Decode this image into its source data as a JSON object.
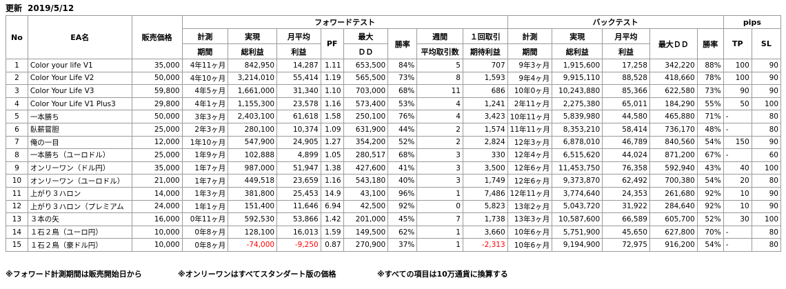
{
  "updated_label": "更新",
  "updated_date": "2019/5/12",
  "groups": {
    "forward": "フォワードテスト",
    "back": "バックテスト",
    "pips": "pips"
  },
  "headers": {
    "no": "No",
    "name": "EA名",
    "price": "販売価格",
    "fw_period_1": "計測",
    "fw_period_2": "期間",
    "fw_total_1": "実現",
    "fw_total_2": "総利益",
    "fw_month_1": "月平均",
    "fw_month_2": "利益",
    "fw_pf": "PF",
    "fw_dd_1": "最大",
    "fw_dd_2": "ＤＤ",
    "fw_win": "勝率",
    "fw_weekly_1": "週間",
    "fw_weekly_2": "平均取引数",
    "fw_exp_1": "１回取引",
    "fw_exp_2": "期待利益",
    "bt_period_1": "計測",
    "bt_period_2": "期間",
    "bt_total_1": "実現",
    "bt_total_2": "総利益",
    "bt_month_1": "月平均",
    "bt_month_2": "利益",
    "bt_dd": "最大ＤＤ",
    "bt_win": "勝率",
    "tp": "TP",
    "sl": "SL"
  },
  "rows": [
    {
      "no": "1",
      "name": "Color your life V1",
      "price": "35,000",
      "fw_period": "4年11ヶ月",
      "fw_total": "842,950",
      "fw_month": "14,287",
      "pf": "1.11",
      "fw_dd": "653,500",
      "fw_win": "84%",
      "weekly": "5",
      "expected": "707",
      "bt_period": "9年3ヶ月",
      "bt_total": "1,915,600",
      "bt_month": "17,258",
      "bt_dd": "342,220",
      "bt_win": "88%",
      "tp": "100",
      "sl": "90"
    },
    {
      "no": "2",
      "name": "Color Your Life V2",
      "price": "50,000",
      "fw_period": "4年10ヶ月",
      "fw_total": "3,214,010",
      "fw_month": "55,414",
      "pf": "1.19",
      "fw_dd": "565,500",
      "fw_win": "73%",
      "weekly": "8",
      "expected": "1,593",
      "bt_period": "9年4ヶ月",
      "bt_total": "9,915,110",
      "bt_month": "88,528",
      "bt_dd": "418,660",
      "bt_win": "78%",
      "tp": "100",
      "sl": "90"
    },
    {
      "no": "3",
      "name": "Color Your Life V3",
      "price": "59,800",
      "fw_period": "4年5ヶ月",
      "fw_total": "1,661,000",
      "fw_month": "31,340",
      "pf": "1.10",
      "fw_dd": "703,000",
      "fw_win": "68%",
      "weekly": "11",
      "expected": "686",
      "bt_period": "10年0ヶ月",
      "bt_total": "10,243,880",
      "bt_month": "85,366",
      "bt_dd": "622,580",
      "bt_win": "73%",
      "tp": "90",
      "sl": "90"
    },
    {
      "no": "4",
      "name": "Color Your Life V1 Plus3",
      "price": "29,800",
      "fw_period": "4年1ヶ月",
      "fw_total": "1,155,300",
      "fw_month": "23,578",
      "pf": "1.16",
      "fw_dd": "573,400",
      "fw_win": "53%",
      "weekly": "4",
      "expected": "1,241",
      "bt_period": "2年11ヶ月",
      "bt_total": "2,275,380",
      "bt_month": "65,011",
      "bt_dd": "184,290",
      "bt_win": "55%",
      "tp": "50",
      "sl": "100"
    },
    {
      "no": "5",
      "name": "一本勝ち",
      "price": "50,000",
      "fw_period": "3年3ヶ月",
      "fw_total": "2,403,100",
      "fw_month": "61,618",
      "pf": "1.58",
      "fw_dd": "250,100",
      "fw_win": "76%",
      "weekly": "4",
      "expected": "3,423",
      "bt_period": "10年11ヶ月",
      "bt_total": "5,839,980",
      "bt_month": "44,580",
      "bt_dd": "465,880",
      "bt_win": "71%",
      "tp": "-",
      "sl": "80"
    },
    {
      "no": "6",
      "name": "臥薪嘗胆",
      "price": "25,000",
      "fw_period": "2年3ヶ月",
      "fw_total": "280,100",
      "fw_month": "10,374",
      "pf": "1.09",
      "fw_dd": "631,900",
      "fw_win": "44%",
      "weekly": "2",
      "expected": "1,574",
      "bt_period": "11年11ヶ月",
      "bt_total": "8,353,210",
      "bt_month": "58,414",
      "bt_dd": "736,170",
      "bt_win": "48%",
      "tp": "-",
      "sl": "80"
    },
    {
      "no": "7",
      "name": "俺の一目",
      "price": "12,000",
      "fw_period": "1年10ヶ月",
      "fw_total": "547,900",
      "fw_month": "24,905",
      "pf": "1.27",
      "fw_dd": "354,200",
      "fw_win": "52%",
      "weekly": "2",
      "expected": "2,824",
      "bt_period": "12年3ヶ月",
      "bt_total": "6,878,010",
      "bt_month": "46,789",
      "bt_dd": "840,560",
      "bt_win": "54%",
      "tp": "150",
      "sl": "90"
    },
    {
      "no": "8",
      "name": "一本勝ち（ユーロドル）",
      "price": "25,000",
      "fw_period": "1年9ヶ月",
      "fw_total": "102,888",
      "fw_month": "4,899",
      "pf": "1.05",
      "fw_dd": "280,517",
      "fw_win": "68%",
      "weekly": "3",
      "expected": "330",
      "bt_period": "12年4ヶ月",
      "bt_total": "6,515,620",
      "bt_month": "44,024",
      "bt_dd": "871,200",
      "bt_win": "67%",
      "tp": "-",
      "sl": "60"
    },
    {
      "no": "9",
      "name": "オンリーワン（ドル円）",
      "price": "35,000",
      "fw_period": "1年7ヶ月",
      "fw_total": "987,000",
      "fw_month": "51,947",
      "pf": "1.38",
      "fw_dd": "427,600",
      "fw_win": "41%",
      "weekly": "3",
      "expected": "3,500",
      "bt_period": "12年6ヶ月",
      "bt_total": "11,453,750",
      "bt_month": "76,358",
      "bt_dd": "592,940",
      "bt_win": "43%",
      "tp": "40",
      "sl": "100"
    },
    {
      "no": "10",
      "name": "オンリーワン（ユーロドル）",
      "price": "21,000",
      "fw_period": "1年7ヶ月",
      "fw_total": "449,518",
      "fw_month": "23,659",
      "pf": "1.16",
      "fw_dd": "543,180",
      "fw_win": "40%",
      "weekly": "3",
      "expected": "1,749",
      "bt_period": "12年6ヶ月",
      "bt_total": "9,373,870",
      "bt_month": "62,492",
      "bt_dd": "700,380",
      "bt_win": "54%",
      "tp": "20",
      "sl": "80"
    },
    {
      "no": "11",
      "name": "上がり３ハロン",
      "price": "14,000",
      "fw_period": "1年3ヶ月",
      "fw_total": "381,800",
      "fw_month": "25,453",
      "pf": "14.9",
      "fw_dd": "43,100",
      "fw_win": "96%",
      "weekly": "1",
      "expected": "7,486",
      "bt_period": "12年11ヶ月",
      "bt_total": "3,774,640",
      "bt_month": "24,353",
      "bt_dd": "261,680",
      "bt_win": "92%",
      "tp": "10",
      "sl": "90"
    },
    {
      "no": "12",
      "name": "上がり３ハロン（プレミアム",
      "price": "24,000",
      "fw_period": "1年1ヶ月",
      "fw_total": "151,400",
      "fw_month": "11,646",
      "pf": "6.94",
      "fw_dd": "42,500",
      "fw_win": "92%",
      "weekly": "0",
      "expected": "5,823",
      "bt_period": "13年2ヶ月",
      "bt_total": "5,043,720",
      "bt_month": "31,922",
      "bt_dd": "284,640",
      "bt_win": "92%",
      "tp": "10",
      "sl": "90"
    },
    {
      "no": "13",
      "name": "３本の矢",
      "price": "16,000",
      "fw_period": "0年11ヶ月",
      "fw_total": "592,530",
      "fw_month": "53,866",
      "pf": "1.42",
      "fw_dd": "201,000",
      "fw_win": "45%",
      "weekly": "7",
      "expected": "1,738",
      "bt_period": "13年3ヶ月",
      "bt_total": "10,587,600",
      "bt_month": "66,589",
      "bt_dd": "605,700",
      "bt_win": "52%",
      "tp": "30",
      "sl": "100"
    },
    {
      "no": "14",
      "name": "１石２鳥（ユーロ円）",
      "price": "10,000",
      "fw_period": "0年8ヶ月",
      "fw_total": "128,100",
      "fw_month": "16,013",
      "pf": "1.59",
      "fw_dd": "149,500",
      "fw_win": "62%",
      "weekly": "1",
      "expected": "3,660",
      "bt_period": "10年6ヶ月",
      "bt_total": "5,751,900",
      "bt_month": "45,650",
      "bt_dd": "627,800",
      "bt_win": "70%",
      "tp": "-",
      "sl": "80"
    },
    {
      "no": "15",
      "name": "１石２鳥（豪ドル円）",
      "price": "10,000",
      "fw_period": "0年8ヶ月",
      "fw_total": "-74,000",
      "fw_month": "-9,250",
      "pf": "0.87",
      "fw_dd": "270,900",
      "fw_win": "37%",
      "weekly": "1",
      "expected": "-2,313",
      "bt_period": "10年6ヶ月",
      "bt_total": "9,194,900",
      "bt_month": "72,975",
      "bt_dd": "916,200",
      "bt_win": "54%",
      "tp": "-",
      "sl": "80"
    }
  ],
  "notes": [
    "※フォワード計測期間は販売開始日から",
    "※オンリーワンはすべてスタンダート版の価格",
    "※すべての項目は10万通貨に換算する"
  ],
  "colors": {
    "negative": "#ff0000",
    "border": "#9a9a9a"
  }
}
